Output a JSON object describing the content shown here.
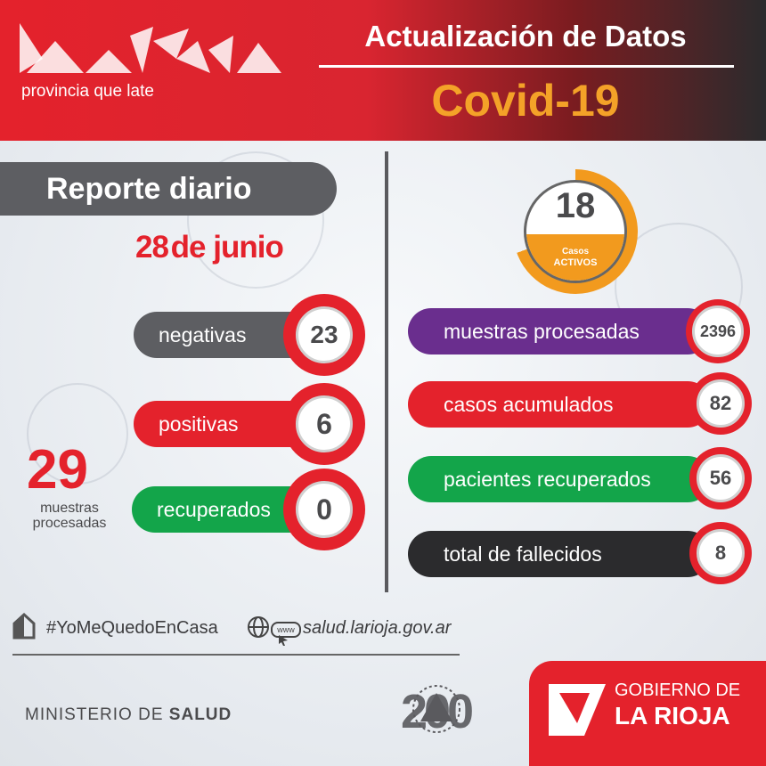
{
  "header": {
    "logo_tagline": "provincia que late",
    "title": "Actualización de Datos",
    "subtitle": "Covid-19"
  },
  "daily": {
    "label": "Reporte diario",
    "date_day": "28",
    "date_month": "de junio",
    "negativas_label": "negativas",
    "negativas_value": "23",
    "positivas_label": "positivas",
    "positivas_value": "6",
    "recuperados_label": "recuperados",
    "recuperados_value": "0",
    "samples_total": "29",
    "samples_caption_1": "muestras",
    "samples_caption_2": "procesadas"
  },
  "cumulative": {
    "active_value": "18",
    "active_label_1": "Casos",
    "active_label_2": "ACTIVOS",
    "muestras_label": "muestras procesadas",
    "muestras_value": "2396",
    "casos_label": "casos acumulados",
    "casos_value": "82",
    "recuperados_label": "pacientes recuperados",
    "recuperados_value": "56",
    "fallecidos_label": "total de fallecidos",
    "fallecidos_value": "8"
  },
  "footer": {
    "hashtag": "#YoMeQuedoEnCasa",
    "website": "salud.larioja.gov.ar",
    "www_badge": "www",
    "ministry_prefix": "MINISTERIO DE ",
    "ministry_bold": "SALUD",
    "anniversary": "200",
    "gob_line1": "GOBIERNO DE",
    "gob_line2": "LA RIOJA"
  },
  "colors": {
    "red": "#e4222c",
    "gray": "#5d5e62",
    "green": "#13a54a",
    "purple": "#6a2e8e",
    "dark": "#2b2b2d",
    "orange": "#f29a1e"
  }
}
